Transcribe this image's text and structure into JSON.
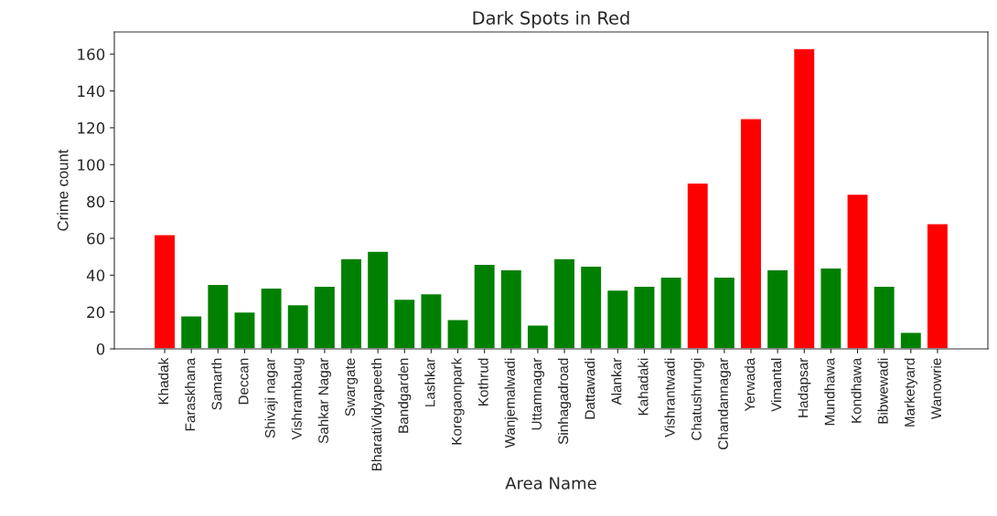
{
  "chart_data": {
    "type": "bar",
    "title": "Dark Spots in Red",
    "xlabel": "Area Name",
    "ylabel": "Crime count",
    "categories": [
      "Khadak",
      "Faraskhana",
      "Samarth",
      "Deccan",
      "Shivaji nagar",
      "Vishrambaug",
      "Sahkar Nagar",
      "Swargate",
      "BharatiVidyapeeth",
      "Bandgarden",
      "Lashkar",
      "Koregaonpark",
      "Kothrud",
      "Wanjemalwadi",
      "Uttamnagar",
      "Sinhagadroad",
      "Dattawadi",
      "Alankar",
      "Kahadaki",
      "Vishrantwadi",
      "Chatushrungi",
      "Chandannagar",
      "Yerwada",
      "Vimantal",
      "Hadapsar",
      "Mundhawa",
      "Kondhawa",
      "Bibwewadi",
      "Marketyard",
      "Wanowrie"
    ],
    "values": [
      62,
      18,
      35,
      20,
      33,
      24,
      34,
      49,
      53,
      27,
      30,
      16,
      46,
      43,
      13,
      49,
      45,
      32,
      34,
      39,
      90,
      39,
      125,
      43,
      163,
      44,
      84,
      34,
      9,
      68
    ],
    "colors": [
      "#ff0000",
      "#008000",
      "#008000",
      "#008000",
      "#008000",
      "#008000",
      "#008000",
      "#008000",
      "#008000",
      "#008000",
      "#008000",
      "#008000",
      "#008000",
      "#008000",
      "#008000",
      "#008000",
      "#008000",
      "#008000",
      "#008000",
      "#008000",
      "#ff0000",
      "#008000",
      "#ff0000",
      "#008000",
      "#ff0000",
      "#008000",
      "#ff0000",
      "#008000",
      "#008000",
      "#ff0000"
    ],
    "ylim": [
      0,
      172
    ],
    "yticks": [
      0,
      20,
      40,
      60,
      80,
      100,
      120,
      140,
      160
    ],
    "grid": false
  }
}
